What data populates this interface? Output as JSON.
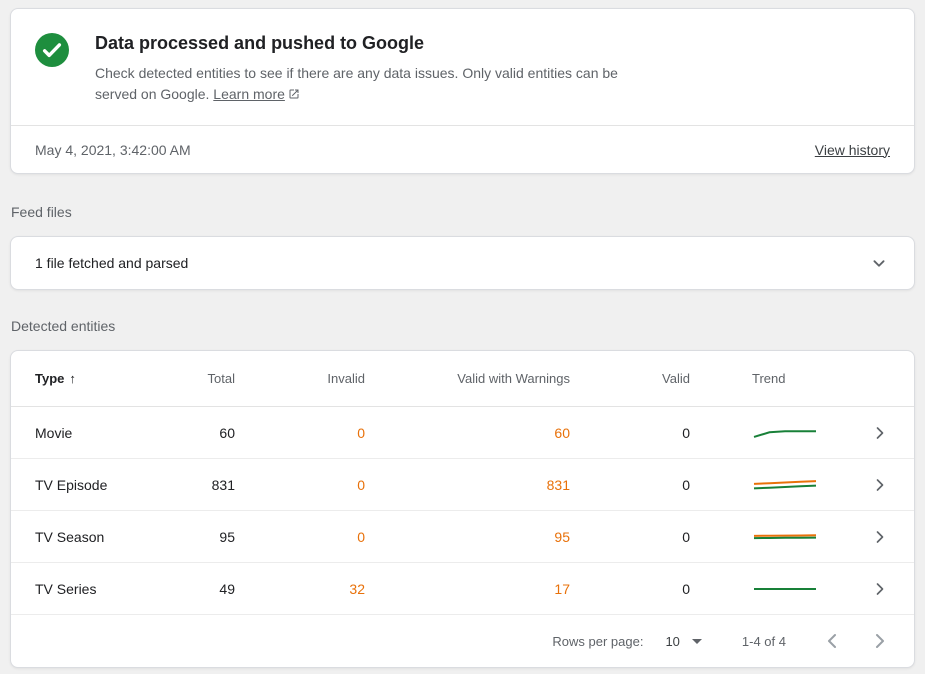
{
  "colors": {
    "success_green": "#1e8e3e",
    "warning_orange": "#e8710a",
    "trend_green": "#188038",
    "trend_orange": "#e8710a"
  },
  "status": {
    "title": "Data processed and pushed to Google",
    "description": "Check detected entities to see if there are any data issues. Only valid entities can be served on Google.",
    "learn_more_label": "Learn more",
    "timestamp": "May 4, 2021, 3:42:00 AM",
    "view_history_label": "View history"
  },
  "feed_files": {
    "section_label": "Feed files",
    "summary": "1 file fetched and parsed"
  },
  "entities": {
    "section_label": "Detected entities",
    "columns": [
      "Type",
      "Total",
      "Invalid",
      "Valid with Warnings",
      "Valid",
      "Trend"
    ],
    "rows": [
      {
        "type": "Movie",
        "total": "60",
        "invalid": "0",
        "warnings": "60",
        "valid": "0",
        "trend": {
          "green": [
            22,
            55,
            62,
            62,
            62
          ]
        }
      },
      {
        "type": "TV Episode",
        "total": "831",
        "invalid": "0",
        "warnings": "831",
        "valid": "0",
        "trend": {
          "orange": [
            58,
            63,
            68,
            73,
            78
          ],
          "green": [
            26,
            31,
            36,
            41,
            46
          ]
        }
      },
      {
        "type": "TV Season",
        "total": "95",
        "invalid": "0",
        "warnings": "95",
        "valid": "0",
        "trend": {
          "orange": [
            58,
            59,
            60,
            61,
            62
          ],
          "green": [
            42,
            43,
            44,
            45,
            46
          ]
        }
      },
      {
        "type": "TV Series",
        "total": "49",
        "invalid": "32",
        "warnings": "17",
        "valid": "0",
        "trend": {
          "green": [
            50,
            50,
            50,
            50,
            50
          ]
        }
      }
    ],
    "pagination": {
      "rows_per_page_label": "Rows per page:",
      "rows_per_page_value": "10",
      "range": "1-4 of 4"
    }
  }
}
